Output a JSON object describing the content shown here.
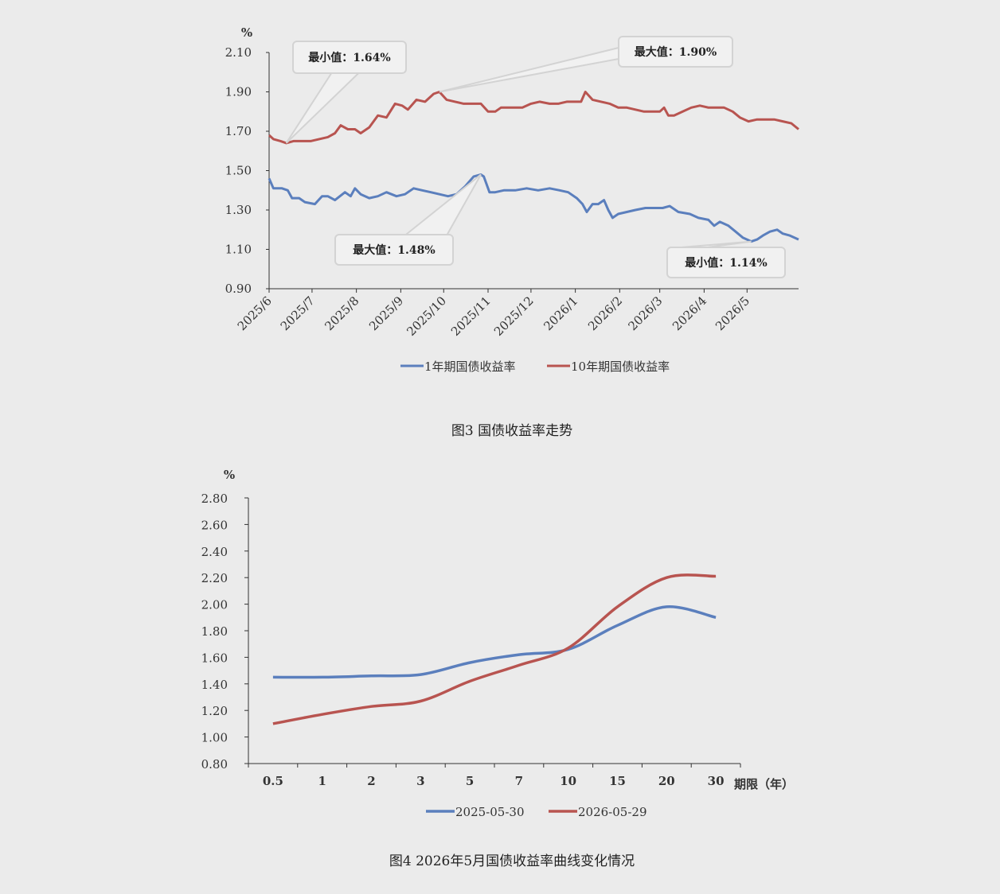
{
  "chart_data": [
    {
      "type": "line",
      "title": "",
      "caption": "图3 国债收益率走势",
      "ylabel": "%",
      "ylim": [
        0.9,
        2.1
      ],
      "yticks": [
        "0.90",
        "1.10",
        "1.30",
        "1.50",
        "1.70",
        "1.90",
        "2.10"
      ],
      "xticks": [
        "2025/6",
        "2025/7",
        "2025/8",
        "2025/9",
        "2025/10",
        "2025/11",
        "2025/12",
        "2026/1",
        "2026/2",
        "2026/3",
        "2026/4",
        "2026/5"
      ],
      "legend_position": "bottom",
      "series": [
        {
          "name": "1年期国债收益率",
          "color": "#5b7fbd",
          "points": [
            [
              "2025-06-01",
              1.46
            ],
            [
              "2025-06-04",
              1.41
            ],
            [
              "2025-06-10",
              1.41
            ],
            [
              "2025-06-14",
              1.4
            ],
            [
              "2025-06-17",
              1.36
            ],
            [
              "2025-06-22",
              1.36
            ],
            [
              "2025-06-26",
              1.34
            ],
            [
              "2025-07-03",
              1.33
            ],
            [
              "2025-07-08",
              1.37
            ],
            [
              "2025-07-12",
              1.37
            ],
            [
              "2025-07-17",
              1.35
            ],
            [
              "2025-07-24",
              1.39
            ],
            [
              "2025-07-28",
              1.37
            ],
            [
              "2025-07-31",
              1.41
            ],
            [
              "2025-08-04",
              1.38
            ],
            [
              "2025-08-10",
              1.36
            ],
            [
              "2025-08-16",
              1.37
            ],
            [
              "2025-08-22",
              1.39
            ],
            [
              "2025-08-29",
              1.37
            ],
            [
              "2025-09-04",
              1.38
            ],
            [
              "2025-09-10",
              1.41
            ],
            [
              "2025-09-16",
              1.4
            ],
            [
              "2025-09-22",
              1.39
            ],
            [
              "2025-09-28",
              1.38
            ],
            [
              "2025-10-04",
              1.37
            ],
            [
              "2025-10-10",
              1.38
            ],
            [
              "2025-10-16",
              1.42
            ],
            [
              "2025-10-22",
              1.47
            ],
            [
              "2025-10-27",
              1.48
            ],
            [
              "2025-10-29",
              1.47
            ],
            [
              "2025-11-02",
              1.39
            ],
            [
              "2025-11-06",
              1.39
            ],
            [
              "2025-11-12",
              1.4
            ],
            [
              "2025-11-20",
              1.4
            ],
            [
              "2025-11-28",
              1.41
            ],
            [
              "2025-12-06",
              1.4
            ],
            [
              "2025-12-14",
              1.41
            ],
            [
              "2025-12-21",
              1.4
            ],
            [
              "2025-12-27",
              1.39
            ],
            [
              "2026-01-02",
              1.36
            ],
            [
              "2026-01-06",
              1.33
            ],
            [
              "2026-01-09",
              1.29
            ],
            [
              "2026-01-13",
              1.33
            ],
            [
              "2026-01-17",
              1.33
            ],
            [
              "2026-01-21",
              1.35
            ],
            [
              "2026-01-24",
              1.3
            ],
            [
              "2026-01-27",
              1.26
            ],
            [
              "2026-01-31",
              1.28
            ],
            [
              "2026-02-06",
              1.29
            ],
            [
              "2026-02-12",
              1.3
            ],
            [
              "2026-02-19",
              1.31
            ],
            [
              "2026-02-26",
              1.31
            ],
            [
              "2026-03-03",
              1.31
            ],
            [
              "2026-03-08",
              1.32
            ],
            [
              "2026-03-14",
              1.29
            ],
            [
              "2026-03-22",
              1.28
            ],
            [
              "2026-03-28",
              1.26
            ],
            [
              "2026-04-04",
              1.25
            ],
            [
              "2026-04-08",
              1.22
            ],
            [
              "2026-04-12",
              1.24
            ],
            [
              "2026-04-18",
              1.22
            ],
            [
              "2026-04-23",
              1.19
            ],
            [
              "2026-04-28",
              1.16
            ],
            [
              "2026-05-04",
              1.14
            ],
            [
              "2026-05-08",
              1.15
            ],
            [
              "2026-05-12",
              1.17
            ],
            [
              "2026-05-17",
              1.19
            ],
            [
              "2026-05-22",
              1.2
            ],
            [
              "2026-05-26",
              1.18
            ],
            [
              "2026-05-31",
              1.17
            ],
            [
              "2026-06-06",
              1.15
            ]
          ]
        },
        {
          "name": "10年期国债收益率",
          "color": "#b85450",
          "points": [
            [
              "2025-06-01",
              1.68
            ],
            [
              "2025-06-04",
              1.66
            ],
            [
              "2025-06-09",
              1.65
            ],
            [
              "2025-06-13",
              1.64
            ],
            [
              "2025-06-18",
              1.65
            ],
            [
              "2025-06-24",
              1.65
            ],
            [
              "2025-06-30",
              1.65
            ],
            [
              "2025-07-06",
              1.66
            ],
            [
              "2025-07-12",
              1.67
            ],
            [
              "2025-07-17",
              1.69
            ],
            [
              "2025-07-21",
              1.73
            ],
            [
              "2025-07-26",
              1.71
            ],
            [
              "2025-07-31",
              1.71
            ],
            [
              "2025-08-04",
              1.69
            ],
            [
              "2025-08-10",
              1.72
            ],
            [
              "2025-08-16",
              1.78
            ],
            [
              "2025-08-22",
              1.77
            ],
            [
              "2025-08-28",
              1.84
            ],
            [
              "2025-09-02",
              1.83
            ],
            [
              "2025-09-06",
              1.81
            ],
            [
              "2025-09-12",
              1.86
            ],
            [
              "2025-09-18",
              1.85
            ],
            [
              "2025-09-24",
              1.89
            ],
            [
              "2025-09-28",
              1.9
            ],
            [
              "2025-10-03",
              1.86
            ],
            [
              "2025-10-09",
              1.85
            ],
            [
              "2025-10-15",
              1.84
            ],
            [
              "2025-10-21",
              1.84
            ],
            [
              "2025-10-27",
              1.84
            ],
            [
              "2025-11-01",
              1.8
            ],
            [
              "2025-11-06",
              1.8
            ],
            [
              "2025-11-10",
              1.82
            ],
            [
              "2025-11-18",
              1.82
            ],
            [
              "2025-11-25",
              1.82
            ],
            [
              "2025-12-01",
              1.84
            ],
            [
              "2025-12-07",
              1.85
            ],
            [
              "2025-12-14",
              1.84
            ],
            [
              "2025-12-20",
              1.84
            ],
            [
              "2025-12-26",
              1.85
            ],
            [
              "2026-01-01",
              1.85
            ],
            [
              "2026-01-05",
              1.85
            ],
            [
              "2026-01-08",
              1.9
            ],
            [
              "2026-01-13",
              1.86
            ],
            [
              "2026-01-19",
              1.85
            ],
            [
              "2026-01-25",
              1.84
            ],
            [
              "2026-01-31",
              1.82
            ],
            [
              "2026-02-06",
              1.82
            ],
            [
              "2026-02-12",
              1.81
            ],
            [
              "2026-02-18",
              1.8
            ],
            [
              "2026-02-24",
              1.8
            ],
            [
              "2026-03-01",
              1.8
            ],
            [
              "2026-03-04",
              1.82
            ],
            [
              "2026-03-07",
              1.78
            ],
            [
              "2026-03-11",
              1.78
            ],
            [
              "2026-03-17",
              1.8
            ],
            [
              "2026-03-23",
              1.82
            ],
            [
              "2026-03-29",
              1.83
            ],
            [
              "2026-04-04",
              1.82
            ],
            [
              "2026-04-09",
              1.82
            ],
            [
              "2026-04-15",
              1.82
            ],
            [
              "2026-04-21",
              1.8
            ],
            [
              "2026-04-26",
              1.77
            ],
            [
              "2026-05-02",
              1.75
            ],
            [
              "2026-05-08",
              1.76
            ],
            [
              "2026-05-14",
              1.76
            ],
            [
              "2026-05-20",
              1.76
            ],
            [
              "2026-05-26",
              1.75
            ],
            [
              "2026-06-01",
              1.74
            ],
            [
              "2026-06-06",
              1.71
            ]
          ]
        }
      ],
      "annotations": [
        {
          "label": "最小值：1.64%",
          "series": 1,
          "x": "2025-06-13",
          "y": 1.64,
          "position": "above"
        },
        {
          "label": "最大值：1.90%",
          "series": 1,
          "x": "2025-09-28",
          "y": 1.9,
          "position": "upper-right"
        },
        {
          "label": "最大值：1.48%",
          "series": 0,
          "x": "2025-10-27",
          "y": 1.48,
          "position": "below-left"
        },
        {
          "label": "最小值：1.14%",
          "series": 0,
          "x": "2026-05-04",
          "y": 1.14,
          "position": "below"
        }
      ]
    },
    {
      "type": "line",
      "title": "",
      "caption": "图4 2026年5月国债收益率曲线变化情况",
      "ylabel": "%",
      "xlabel": "期限（年）",
      "ylim": [
        0.8,
        2.8
      ],
      "yticks": [
        "0.80",
        "1.00",
        "1.20",
        "1.40",
        "1.60",
        "1.80",
        "2.00",
        "2.20",
        "2.40",
        "2.60",
        "2.80"
      ],
      "categories": [
        "0.5",
        "1",
        "2",
        "3",
        "5",
        "7",
        "10",
        "15",
        "20",
        "30"
      ],
      "legend_position": "bottom",
      "series": [
        {
          "name": "2025-05-30",
          "color": "#5b7fbd",
          "values": [
            1.45,
            1.45,
            1.46,
            1.47,
            1.56,
            1.62,
            1.66,
            1.84,
            1.98,
            1.9
          ]
        },
        {
          "name": "2026-05-29",
          "color": "#b85450",
          "values": [
            1.1,
            1.17,
            1.23,
            1.27,
            1.42,
            1.54,
            1.67,
            1.98,
            2.2,
            2.21
          ]
        }
      ]
    }
  ]
}
